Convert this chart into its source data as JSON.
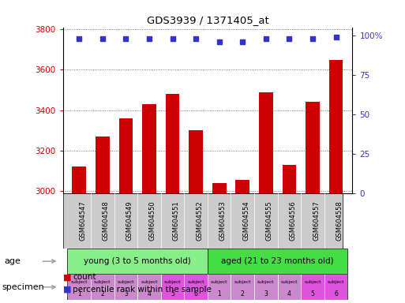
{
  "title": "GDS3939 / 1371405_at",
  "samples": [
    "GSM604547",
    "GSM604548",
    "GSM604549",
    "GSM604550",
    "GSM604551",
    "GSM604552",
    "GSM604553",
    "GSM604554",
    "GSM604555",
    "GSM604556",
    "GSM604557",
    "GSM604558"
  ],
  "counts": [
    3120,
    3270,
    3360,
    3430,
    3480,
    3300,
    3040,
    3055,
    3490,
    3130,
    3440,
    3650
  ],
  "percentile_ranks": [
    98,
    98,
    98,
    98,
    98,
    98,
    96,
    96,
    98,
    98,
    98,
    99
  ],
  "ylim_left": [
    2990,
    3810
  ],
  "ylim_right": [
    0,
    105
  ],
  "yticks_left": [
    3000,
    3200,
    3400,
    3600,
    3800
  ],
  "yticks_right": [
    0,
    25,
    50,
    75,
    100
  ],
  "bar_color": "#cc0000",
  "dot_color": "#3333cc",
  "bar_width": 0.6,
  "grid_color": "#555555",
  "specimen_colors_young": [
    "#cc88cc",
    "#cc88cc",
    "#cc88cc",
    "#cc88cc",
    "#dd55dd",
    "#dd55dd"
  ],
  "specimen_colors_aged": [
    "#cc88cc",
    "#cc88cc",
    "#cc88cc",
    "#cc88cc",
    "#dd55dd",
    "#dd55dd"
  ],
  "specimen_numbers": [
    "1",
    "2",
    "3",
    "4",
    "5",
    "6",
    "1",
    "2",
    "3",
    "4",
    "5",
    "6"
  ],
  "bg_color": "#cccccc",
  "left_label_color": "#cc0000",
  "right_label_color": "#3333cc",
  "age_color_young": "#88ee88",
  "age_color_aged": "#44dd44",
  "arrow_color": "#999999"
}
